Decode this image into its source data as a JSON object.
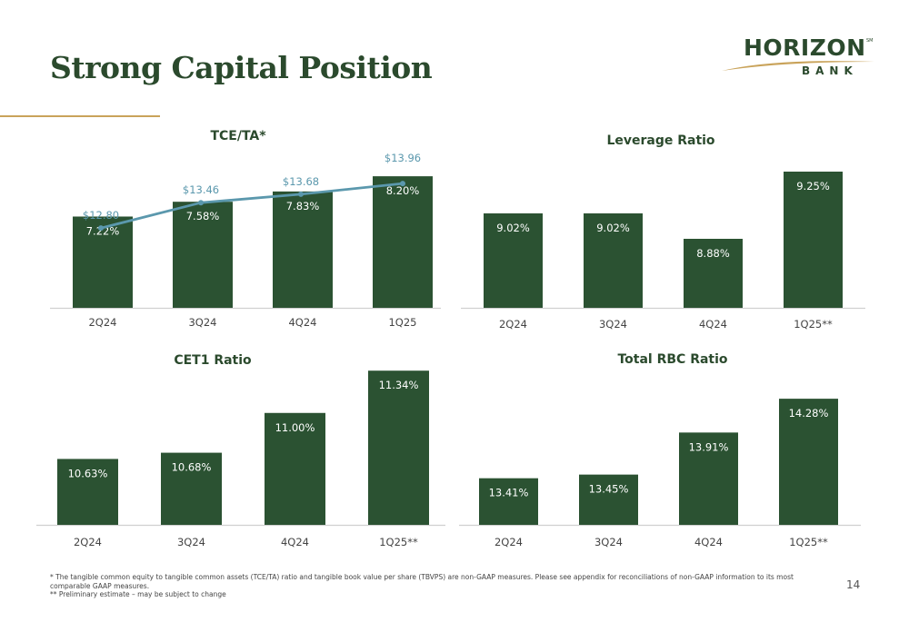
{
  "page": {
    "title": "Strong Capital Position",
    "page_number": "14",
    "colors": {
      "bar": "#2b5232",
      "tbvps_line": "#5b98ad",
      "title": "#2b4a2d",
      "accent": "#c9a35a",
      "axis": "#d0d0d0"
    }
  },
  "logo": {
    "main": "HORIZON",
    "sub": "BANK",
    "mark": "SM"
  },
  "footnotes": {
    "note1": "*  The tangible common equity to tangible common assets (TCE/TA) ratio and tangible book value per share (TBVPS) are non-GAAP  measures.  Please see appendix for reconciliations of non-GAAP information to its most comparable GAAP measures.",
    "note2": "** Preliminary estimate – may be subject to change"
  },
  "chart_data": [
    {
      "type": "bar",
      "title": "TCE/TA*",
      "categories": [
        "2Q24",
        "3Q24",
        "4Q24",
        "1Q25"
      ],
      "series": [
        {
          "values": [
            7.22,
            7.58,
            7.83,
            8.2
          ],
          "labels": [
            "7.22%",
            "7.58%",
            "7.83%",
            "8.20%"
          ]
        }
      ],
      "overlay_line": {
        "values": [
          12.8,
          13.46,
          13.68,
          13.96
        ],
        "labels": [
          "$12.80",
          "$13.46",
          "$13.68",
          "$13.96"
        ]
      },
      "ylim": [
        5.0,
        8.6
      ],
      "grid": false
    },
    {
      "type": "bar",
      "title": "Leverage Ratio",
      "categories": [
        "2Q24",
        "3Q24",
        "4Q24",
        "1Q25**"
      ],
      "series": [
        {
          "values": [
            9.02,
            9.02,
            8.88,
            9.25
          ],
          "labels": [
            "9.02%",
            "9.02%",
            "8.88%",
            "9.25%"
          ]
        }
      ],
      "ylim": [
        8.5,
        9.35
      ],
      "grid": false
    },
    {
      "type": "bar",
      "title": "CET1 Ratio",
      "categories": [
        "2Q24",
        "3Q24",
        "4Q24",
        "1Q25**"
      ],
      "series": [
        {
          "values": [
            10.63,
            10.68,
            11.0,
            11.34
          ],
          "labels": [
            "10.63%",
            "10.68%",
            "11.00%",
            "11.34%"
          ]
        }
      ],
      "ylim": [
        10.1,
        11.4
      ],
      "grid": false
    },
    {
      "type": "bar",
      "title": "Total RBC Ratio",
      "categories": [
        "2Q24",
        "3Q24",
        "4Q24",
        "1Q25**"
      ],
      "series": [
        {
          "values": [
            13.41,
            13.45,
            13.91,
            14.28
          ],
          "labels": [
            "13.41%",
            "13.45%",
            "13.91%",
            "14.28%"
          ]
        }
      ],
      "ylim": [
        12.9,
        14.45
      ],
      "grid": false
    }
  ]
}
